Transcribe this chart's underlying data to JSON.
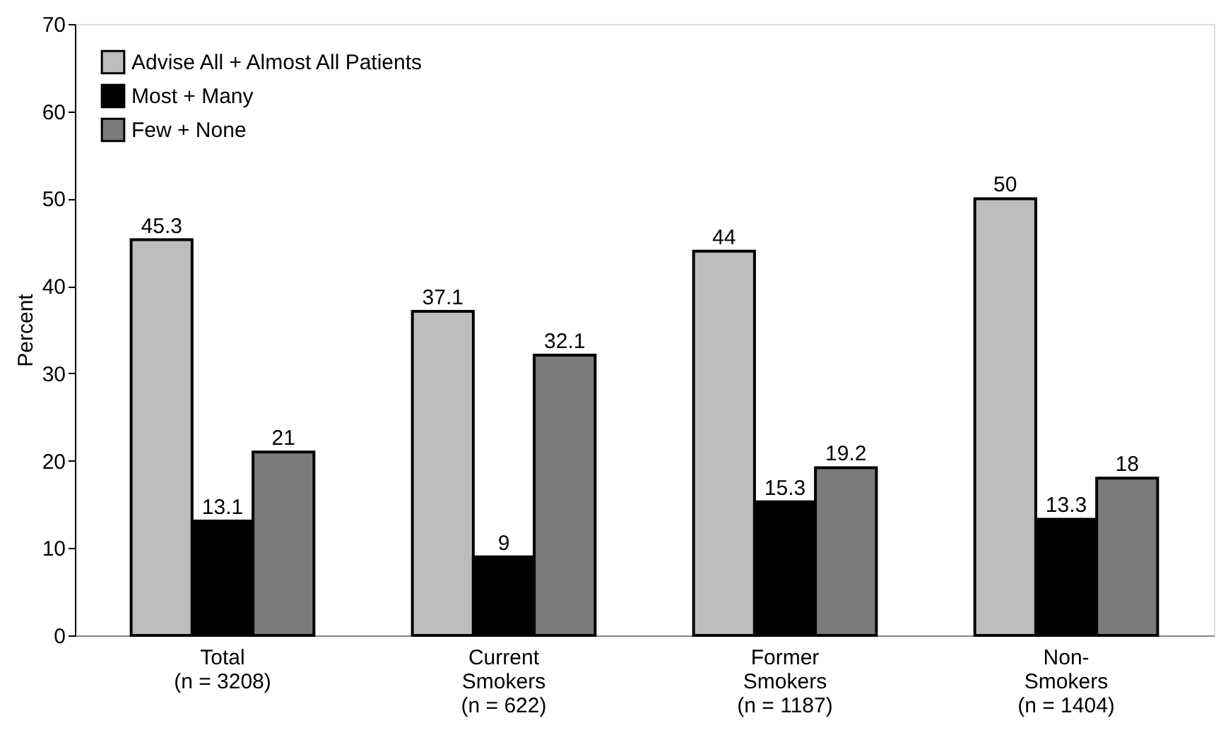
{
  "chart_data": {
    "type": "bar",
    "ylabel": "Percent",
    "categories": [
      "Total\n(n = 3208)",
      "Current\nSmokers\n(n = 622)",
      "Former\nSmokers\n(n = 1187)",
      "Non-\nSmokers\n(n = 1404)"
    ],
    "series": [
      {
        "name": "Advise All + Almost All Patients",
        "color": "#bdbdbd",
        "values": [
          45.3,
          37.1,
          44,
          50
        ]
      },
      {
        "name": "Most + Many",
        "color": "#000000",
        "values": [
          13.1,
          9,
          15.3,
          13.3
        ]
      },
      {
        "name": "Few + None",
        "color": "#7a7a7a",
        "values": [
          21,
          32.1,
          19.2,
          18
        ]
      }
    ],
    "ylim": [
      0,
      70
    ],
    "yticks": [
      0,
      10,
      20,
      30,
      40,
      50,
      60,
      70
    ],
    "grid": false,
    "legend": "top left",
    "data_labels": true
  }
}
